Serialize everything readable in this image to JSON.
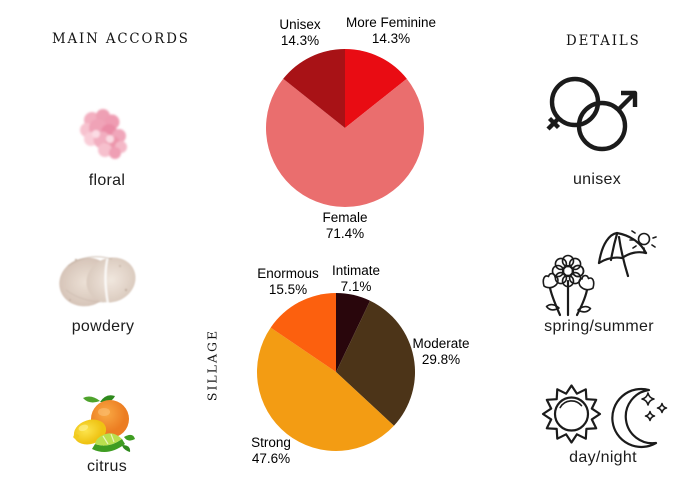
{
  "page": {
    "background_color": "#ffffff",
    "text_color": "#111111",
    "line_icon_color": "#1b1b1b"
  },
  "main_accords": {
    "title": "MAIN ACCORDS",
    "items": [
      {
        "label": "floral",
        "image": "pink-flower-petals-photo"
      },
      {
        "label": "powdery",
        "image": "cosmetic-powder-swatch-photo"
      },
      {
        "label": "citrus",
        "image": "orange-lemon-lime-photo"
      }
    ]
  },
  "details": {
    "title": "DETAILS",
    "items": [
      {
        "label": "unisex",
        "icon": "male-female-symbols-icon"
      },
      {
        "label": "spring/summer",
        "icon": "flowers-umbrella-sun-icon"
      },
      {
        "label": "day/night",
        "icon": "sun-and-moon-icon"
      }
    ]
  },
  "chart_data": [
    {
      "type": "pie",
      "name": "gender",
      "title": "",
      "categories": [
        "More Feminine",
        "Female",
        "Unisex"
      ],
      "values": [
        14.3,
        71.4,
        14.3
      ],
      "labels_pct": [
        "14.3%",
        "71.4%",
        "14.3%"
      ],
      "colors": [
        "#e90c13",
        "#ea6e6e",
        "#a81216"
      ],
      "start_angle_deg": 90,
      "direction": "clockwise",
      "legend_position": "none"
    },
    {
      "type": "pie",
      "name": "sillage",
      "title": "",
      "ylabel": "SILLAGE",
      "categories": [
        "Intimate",
        "Moderate",
        "Strong",
        "Enormous"
      ],
      "values": [
        7.1,
        29.8,
        47.6,
        15.5
      ],
      "labels_pct": [
        "7.1%",
        "29.8%",
        "47.6%",
        "15.5%"
      ],
      "colors": [
        "#29060c",
        "#4c3418",
        "#f39c13",
        "#fc600e"
      ],
      "start_angle_deg": 90,
      "direction": "clockwise",
      "legend_position": "none"
    }
  ]
}
